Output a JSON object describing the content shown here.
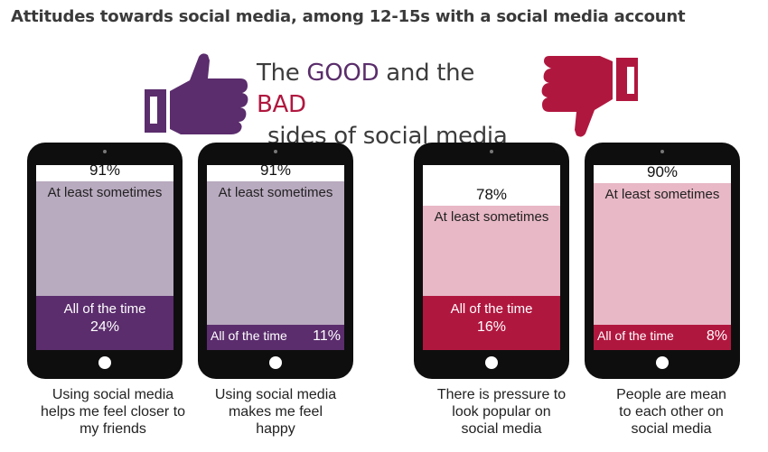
{
  "title": "Attitudes towards social media, among 12-15s with a social media account",
  "hero": {
    "pre": "The ",
    "good": "GOOD",
    "mid": " and the ",
    "bad": "BAD",
    "line2": "sides of social media"
  },
  "icons": {
    "good": "thumbs-up-icon",
    "bad": "thumbs-down-icon"
  },
  "colors": {
    "good_light": "#b8aabf",
    "good_dark": "#5b2d6d",
    "bad_light": "#e8b8c6",
    "bad_dark": "#b0173f"
  },
  "chart_data": {
    "type": "bar",
    "categories": [
      "Using social media helps me feel closer to my friends",
      "Using social media makes me feel happy",
      "There is pressure to look popular on social media",
      "People are mean to each other on social media"
    ],
    "series": [
      {
        "name": "At least sometimes",
        "values": [
          91,
          91,
          78,
          90
        ]
      },
      {
        "name": "All of the time",
        "values": [
          24,
          11,
          16,
          8
        ]
      }
    ],
    "ylim": [
      0,
      100
    ]
  },
  "tablets": [
    {
      "pct": "91%",
      "some": "At least sometimes",
      "all_label": "All of the time",
      "all_pct": "24%",
      "some_value": 91,
      "all_value": 24,
      "tone": "good",
      "inline": false,
      "caption": [
        "Using social media",
        "helps me feel closer to",
        "my friends"
      ]
    },
    {
      "pct": "91%",
      "some": "At least sometimes",
      "all_label": "All of the time",
      "all_pct": "11%",
      "some_value": 91,
      "all_value": 11,
      "tone": "good",
      "inline": true,
      "caption": [
        "Using social media",
        "makes me feel",
        "happy"
      ]
    },
    {
      "pct": "78%",
      "some": "At least sometimes",
      "all_label": "All of the time",
      "all_pct": "16%",
      "some_value": 78,
      "all_value": 16,
      "tone": "bad",
      "inline": false,
      "caption": [
        "There is pressure to",
        "look popular on",
        "social media"
      ]
    },
    {
      "pct": "90%",
      "some": "At least sometimes",
      "all_label": "All of the time",
      "all_pct": "8%",
      "some_value": 90,
      "all_value": 8,
      "tone": "bad",
      "inline": true,
      "caption": [
        "People are mean",
        "to each other on",
        "social media"
      ]
    }
  ]
}
